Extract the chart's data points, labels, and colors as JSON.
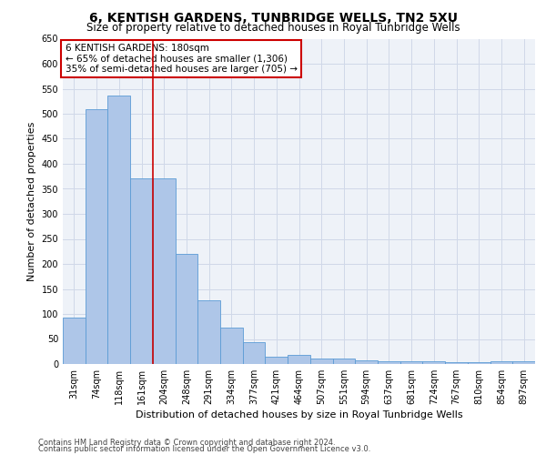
{
  "title": "6, KENTISH GARDENS, TUNBRIDGE WELLS, TN2 5XU",
  "subtitle": "Size of property relative to detached houses in Royal Tunbridge Wells",
  "xlabel": "Distribution of detached houses by size in Royal Tunbridge Wells",
  "ylabel": "Number of detached properties",
  "footnote1": "Contains HM Land Registry data © Crown copyright and database right 2024.",
  "footnote2": "Contains public sector information licensed under the Open Government Licence v3.0.",
  "categories": [
    "31sqm",
    "74sqm",
    "118sqm",
    "161sqm",
    "204sqm",
    "248sqm",
    "291sqm",
    "334sqm",
    "377sqm",
    "421sqm",
    "464sqm",
    "507sqm",
    "551sqm",
    "594sqm",
    "637sqm",
    "681sqm",
    "724sqm",
    "767sqm",
    "810sqm",
    "854sqm",
    "897sqm"
  ],
  "values": [
    92,
    510,
    537,
    370,
    370,
    220,
    127,
    72,
    43,
    15,
    19,
    11,
    11,
    7,
    5,
    6,
    5,
    4,
    3,
    5,
    5
  ],
  "bar_color": "#aec6e8",
  "bar_edge_color": "#5b9bd5",
  "red_line_x": 3.5,
  "annotation_text": "6 KENTISH GARDENS: 180sqm\n← 65% of detached houses are smaller (1,306)\n35% of semi-detached houses are larger (705) →",
  "annotation_box_color": "#ffffff",
  "annotation_box_edge": "#cc0000",
  "ylim": [
    0,
    650
  ],
  "yticks": [
    0,
    50,
    100,
    150,
    200,
    250,
    300,
    350,
    400,
    450,
    500,
    550,
    600,
    650
  ],
  "grid_color": "#d0d8e8",
  "bg_color": "#eef2f8",
  "title_fontsize": 10,
  "subtitle_fontsize": 8.5,
  "axis_label_fontsize": 8,
  "tick_fontsize": 7,
  "annotation_fontsize": 7.5,
  "footnote_fontsize": 6
}
